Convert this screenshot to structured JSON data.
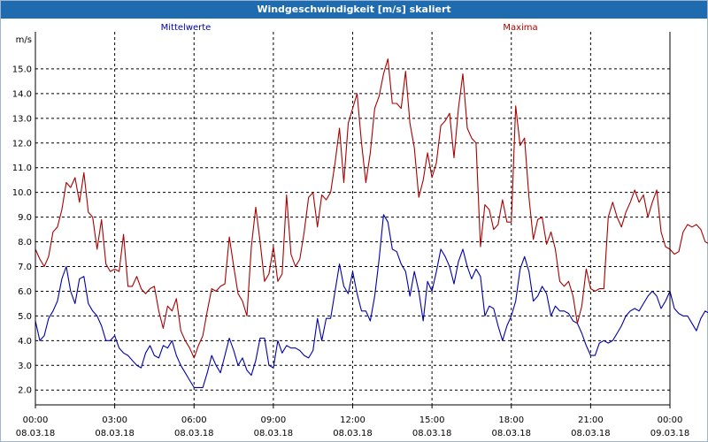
{
  "window": {
    "title": "Windgeschwindigkeit [m/s] skaliert"
  },
  "chart_data": {
    "type": "line",
    "ylabel": "m/s",
    "ylim": [
      1.4,
      16.5
    ],
    "y_ticks": [
      "2.0",
      "3.0",
      "4.0",
      "5.0",
      "6.0",
      "7.0",
      "8.0",
      "9.0",
      "10.0",
      "11.0",
      "12.0",
      "13.0",
      "14.0",
      "15.0"
    ],
    "xlim": [
      "08.03.18 00:00",
      "09.03.18 00:00"
    ],
    "x_ticks": [
      {
        "time": "00:00",
        "date": "08.03.18"
      },
      {
        "time": "03:00",
        "date": "08.03.18"
      },
      {
        "time": "06:00",
        "date": "08.03.18"
      },
      {
        "time": "09:00",
        "date": "08.03.18"
      },
      {
        "time": "12:00",
        "date": "08.03.18"
      },
      {
        "time": "15:00",
        "date": "08.03.18"
      },
      {
        "time": "18:00",
        "date": "08.03.18"
      },
      {
        "time": "21:00",
        "date": "08.03.18"
      },
      {
        "time": "00:00",
        "date": "09.03.18"
      }
    ],
    "grid": true,
    "series_step_minutes": 10,
    "series": [
      {
        "name": "Mittelwerte",
        "color": "#0000aa",
        "values": [
          4.8,
          4.0,
          4.2,
          4.9,
          5.2,
          5.6,
          6.5,
          7.0,
          6.0,
          5.5,
          6.5,
          6.6,
          5.5,
          5.2,
          5.0,
          4.6,
          4.0,
          4.0,
          4.2,
          3.7,
          3.5,
          3.4,
          3.2,
          3.0,
          2.9,
          3.5,
          3.8,
          3.4,
          3.3,
          3.8,
          3.7,
          4.0,
          3.4,
          3.0,
          2.7,
          2.4,
          2.1,
          2.1,
          2.1,
          2.7,
          3.4,
          3.0,
          2.7,
          3.4,
          4.1,
          3.6,
          3.0,
          3.3,
          2.8,
          2.6,
          3.2,
          4.1,
          4.1,
          3.0,
          2.9,
          4.0,
          3.5,
          3.8,
          3.7,
          3.7,
          3.6,
          3.4,
          3.3,
          3.6,
          4.9,
          4.0,
          4.9,
          4.9,
          6.0,
          7.1,
          6.2,
          5.9,
          6.8,
          5.9,
          5.2,
          5.2,
          4.8,
          5.8,
          7.3,
          9.1,
          8.8,
          7.7,
          7.6,
          7.1,
          6.8,
          5.8,
          6.8,
          6.0,
          4.8,
          6.4,
          6.0,
          6.8,
          7.7,
          7.4,
          7.0,
          6.3,
          7.2,
          7.7,
          7.0,
          6.5,
          6.9,
          6.6,
          5.0,
          5.4,
          5.3,
          4.6,
          4.0,
          4.6,
          5.0,
          5.6,
          6.9,
          7.4,
          6.8,
          5.6,
          5.8,
          6.2,
          5.9,
          5.0,
          5.4,
          5.2,
          5.2,
          5.1,
          4.8,
          4.7,
          4.3,
          3.8,
          3.4,
          3.4,
          3.9,
          4.0,
          3.9,
          4.0,
          4.3,
          4.6,
          5.0,
          5.2,
          5.3,
          5.2,
          5.5,
          5.8,
          6.0,
          5.8,
          5.3,
          5.6,
          6.0,
          5.3,
          5.1,
          5.0,
          5.0,
          4.7,
          4.4,
          4.9,
          5.2,
          5.1,
          5.0,
          4.9,
          4.8,
          4.8
        ]
      },
      {
        "name": "Maxima",
        "color": "#aa0000",
        "values": [
          7.7,
          7.3,
          7.0,
          7.4,
          8.4,
          8.6,
          9.3,
          10.4,
          10.2,
          10.6,
          9.6,
          10.8,
          9.2,
          9.0,
          7.7,
          8.9,
          7.1,
          6.8,
          6.9,
          6.8,
          8.3,
          6.2,
          6.2,
          6.6,
          6.1,
          5.9,
          6.1,
          6.2,
          5.2,
          4.5,
          5.4,
          5.2,
          5.7,
          4.4,
          4.0,
          3.7,
          3.3,
          3.8,
          4.2,
          5.2,
          6.1,
          6.0,
          6.2,
          6.3,
          8.2,
          7.0,
          5.9,
          5.6,
          5.0,
          7.8,
          9.4,
          8.0,
          6.4,
          6.7,
          7.8,
          6.4,
          6.7,
          9.9,
          7.5,
          7.0,
          7.3,
          8.4,
          9.8,
          10.0,
          8.6,
          9.9,
          9.7,
          10.0,
          11.2,
          12.6,
          10.4,
          12.8,
          13.4,
          14.0,
          12.0,
          10.4,
          11.6,
          13.4,
          13.9,
          14.8,
          15.4,
          13.6,
          13.6,
          13.4,
          14.9,
          12.8,
          11.8,
          9.8,
          10.5,
          11.6,
          10.6,
          11.2,
          12.7,
          12.9,
          13.2,
          11.4,
          13.4,
          14.8,
          12.6,
          12.2,
          12.0,
          7.8,
          9.5,
          9.3,
          8.5,
          8.7,
          9.7,
          8.8,
          8.8,
          13.5,
          11.9,
          12.2,
          9.8,
          8.1,
          8.9,
          9.0,
          7.9,
          8.4,
          7.7,
          6.4,
          6.2,
          6.4,
          5.8,
          4.7,
          5.4,
          6.9,
          6.1,
          6.0,
          6.1,
          6.1,
          9.0,
          9.6,
          9.0,
          8.6,
          9.2,
          9.6,
          10.1,
          9.6,
          9.9,
          9.0,
          9.6,
          10.1,
          8.4,
          7.8,
          7.7,
          7.5,
          7.6,
          8.4,
          8.7,
          8.6,
          8.7,
          8.5,
          8.0,
          7.9,
          7.0
        ]
      }
    ]
  }
}
